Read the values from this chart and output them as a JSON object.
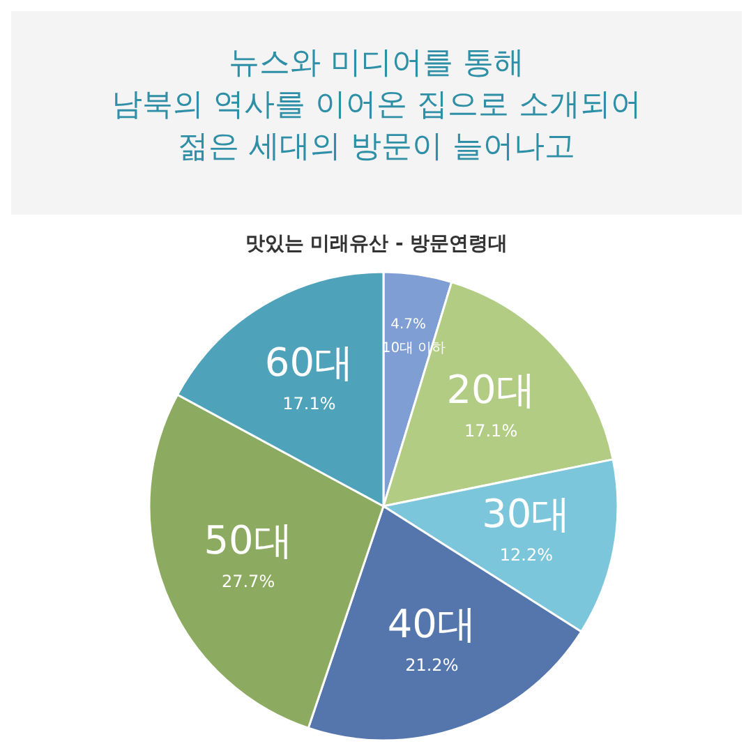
{
  "chart_data": {
    "type": "pie",
    "title": "뉴스와 미디어를 통해\n남북의 역사를 이어온 집으로 소개되어\n젊은 세대의 방문이 늘어나고",
    "subtitle": "맛있는 미래유산 - 방문연령대",
    "categories": [
      "10대 이하",
      "20대",
      "30대",
      "40대",
      "50대",
      "60대"
    ],
    "values": [
      4.7,
      17.1,
      12.2,
      21.2,
      27.7,
      17.1
    ],
    "value_labels": [
      "4.7%",
      "17.1%",
      "12.2%",
      "21.2%",
      "27.7%",
      "17.1%"
    ],
    "colors": [
      "#7f9fd4",
      "#b2cc84",
      "#7cc6db",
      "#5476ad",
      "#8cab60",
      "#4ea3bb"
    ],
    "legend": false
  }
}
